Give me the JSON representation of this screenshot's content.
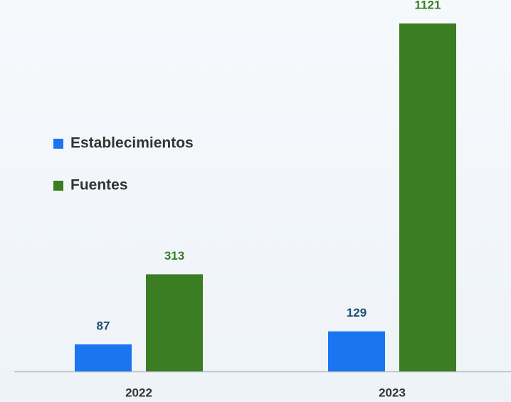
{
  "chart_data": {
    "type": "bar",
    "categories": [
      "2022",
      "2023"
    ],
    "series": [
      {
        "name": "Establecimientos",
        "color": "#1a75f0",
        "label_color": "#1f4e6e",
        "values": [
          87,
          129
        ]
      },
      {
        "name": "Fuentes",
        "color": "#3b7d23",
        "label_color": "#3b7d23",
        "values": [
          313,
          1121
        ]
      }
    ],
    "legend": "left"
  }
}
